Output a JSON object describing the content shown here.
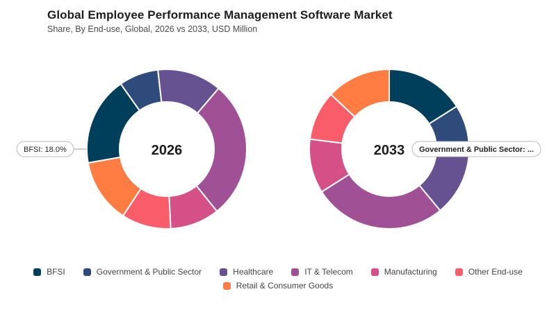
{
  "header": {
    "title": "Global Employee Performance Management Software Market",
    "subtitle": "Share, By End-use, Global, 2026 vs 2033, USD Million"
  },
  "colors": {
    "BFSI": "#003f5c",
    "Government & Public Sector": "#2f4b7c",
    "Healthcare": "#665191",
    "IT & Telecom": "#a05195",
    "Manufacturing": "#d45087",
    "Other End-use": "#f95d6a",
    "Retail & Consumer Goods": "#ff7c43"
  },
  "chart_data": [
    {
      "type": "pie",
      "center_label": "2026",
      "categories": [
        "BFSI",
        "Government & Public Sector",
        "Healthcare",
        "IT & Telecom",
        "Manufacturing",
        "Other End-use",
        "Retail & Consumer Goods"
      ],
      "values": [
        18.0,
        8.0,
        13.0,
        28.0,
        10.0,
        10.0,
        13.0
      ],
      "callout": {
        "category": "BFSI",
        "text": "BFSI: 18.0%",
        "side": "left"
      }
    },
    {
      "type": "pie",
      "center_label": "2033",
      "categories": [
        "BFSI",
        "Government & Public Sector",
        "Healthcare",
        "IT & Telecom",
        "Manufacturing",
        "Other End-use",
        "Retail & Consumer Goods"
      ],
      "values": [
        16.0,
        9.0,
        14.0,
        27.0,
        11.0,
        10.0,
        13.0
      ],
      "callout": {
        "category": "Government & Public Sector",
        "text": "Government & Public Sector: ...",
        "side": "right"
      }
    }
  ],
  "legend": {
    "items": [
      "BFSI",
      "Government & Public Sector",
      "Healthcare",
      "IT & Telecom",
      "Manufacturing",
      "Other End-use",
      "Retail & Consumer Goods"
    ]
  }
}
